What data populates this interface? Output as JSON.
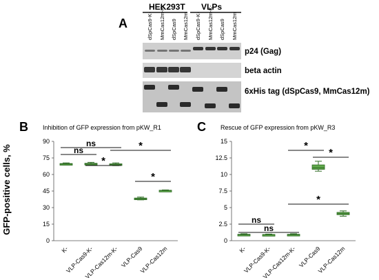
{
  "panels": {
    "A": {
      "label": "A",
      "group_labels": [
        "HEK293T",
        "VLPs"
      ],
      "lane_labels": [
        "dSpCas9-K-",
        "MmCas12m-K-",
        "dSpCas9",
        "MmCas12m",
        "dSpCas9-K-",
        "MmCas12m-K-",
        "dSpCas9",
        "MmCas12m"
      ],
      "blots": [
        {
          "label": "p24 (Gag)"
        },
        {
          "label": "beta actin"
        },
        {
          "label": "6xHis tag (dSpCas9, MmCas12m)"
        }
      ]
    },
    "B": {
      "label": "B"
    },
    "C": {
      "label": "C"
    }
  },
  "shared_ylabel": "GFP-positive cells, %",
  "colors": {
    "box_fill": "#5fa84a",
    "box_edge": "#2f6b25",
    "blot_bg": "#c8c8c8",
    "band": "#1a1a1a"
  },
  "chart_data": [
    {
      "type": "box",
      "title": "Inhibition of GFP expression from pKW_R1",
      "categories": [
        "K-",
        "VLP-Cas9-K-",
        "VLP-Cas12m-K-",
        "VLP-Cas9",
        "VLP-Cas12m"
      ],
      "values": [
        69.5,
        69.5,
        69.0,
        38.0,
        45.5
      ],
      "ranges": [
        [
          68.5,
          70.5
        ],
        [
          68.5,
          71.0
        ],
        [
          68.0,
          70.5
        ],
        [
          37.0,
          39.5
        ],
        [
          45.0,
          46.0
        ]
      ],
      "ylim": [
        0,
        90
      ],
      "yticks": [
        0,
        15,
        30,
        45,
        60,
        75,
        90
      ],
      "annotations": [
        {
          "text": "ns",
          "from": 0,
          "to": 1
        },
        {
          "text": "ns",
          "from": 0,
          "to": 2
        },
        {
          "text": "*",
          "from": 1,
          "to": 2
        },
        {
          "text": "*",
          "from": 2,
          "to": 4
        },
        {
          "text": "*",
          "from": 3,
          "to": 4
        }
      ]
    },
    {
      "type": "box",
      "title": "Rescue of GFP expression from pKW_R3",
      "categories": [
        "K-",
        "VLP-Cas9-K-",
        "VLP-Cas12m-K-",
        "VLP-Cas9",
        "VLP-Cas12m"
      ],
      "values": [
        0.9,
        0.9,
        0.9,
        11.0,
        4.1
      ],
      "ranges": [
        [
          0.75,
          1.05
        ],
        [
          0.8,
          1.0
        ],
        [
          0.75,
          1.05
        ],
        [
          10.5,
          12.0
        ],
        [
          3.7,
          4.5
        ]
      ],
      "ylim": [
        0,
        15
      ],
      "yticks": [
        0,
        2.5,
        5,
        7.5,
        10,
        12.5,
        15
      ],
      "annotations": [
        {
          "text": "*",
          "from": 2,
          "to": 3
        },
        {
          "text": "*",
          "from": 3,
          "to": 4
        },
        {
          "text": "*",
          "from": 2,
          "to": 4
        },
        {
          "text": "ns",
          "from": 0,
          "to": 2
        },
        {
          "text": "ns",
          "from": 0,
          "to": 1
        }
      ]
    }
  ]
}
